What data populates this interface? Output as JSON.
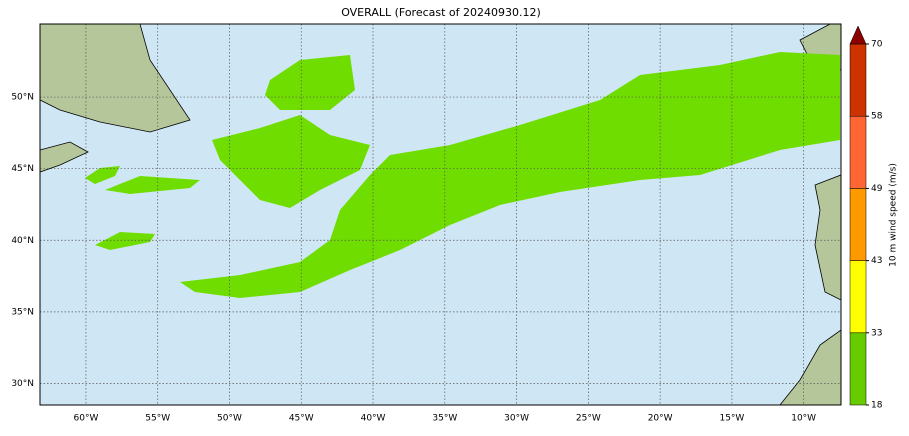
{
  "chart_data": {
    "type": "map",
    "title": "OVERALL (Forecast of 20240930.12)",
    "xlim": [
      -63.2,
      -7.4
    ],
    "ylim": [
      28.5,
      55.1
    ],
    "xticks": [
      {
        "value": -60,
        "label": "60°W"
      },
      {
        "value": -55,
        "label": "55°W"
      },
      {
        "value": -50,
        "label": "50°W"
      },
      {
        "value": -45,
        "label": "45°W"
      },
      {
        "value": -40,
        "label": "40°W"
      },
      {
        "value": -35,
        "label": "35°W"
      },
      {
        "value": -30,
        "label": "30°W"
      },
      {
        "value": -25,
        "label": "25°W"
      },
      {
        "value": -20,
        "label": "20°W"
      },
      {
        "value": -15,
        "label": "15°W"
      },
      {
        "value": -10,
        "label": "10°W"
      }
    ],
    "yticks": [
      {
        "value": 30,
        "label": "30°N"
      },
      {
        "value": 35,
        "label": "35°N"
      },
      {
        "value": 40,
        "label": "40°N"
      },
      {
        "value": 45,
        "label": "45°N"
      },
      {
        "value": 50,
        "label": "50°N"
      }
    ],
    "grid": true,
    "colorbar": {
      "label": "10 m wind speed (m/s)",
      "ticks": [
        18,
        33,
        43,
        49,
        58,
        70
      ],
      "colors": [
        "#66cc00",
        "#ffff00",
        "#ff9900",
        "#ff6633",
        "#cc3300"
      ],
      "extend_color": "#8b0000"
    }
  }
}
